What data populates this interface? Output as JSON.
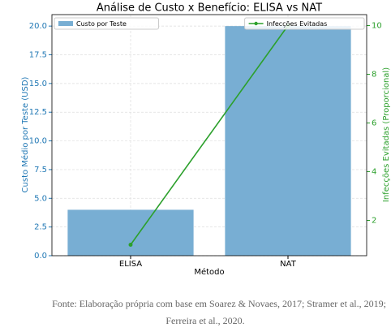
{
  "chart_data": {
    "type": "bar",
    "title": "Análise de Custo x Benefício: ELISA vs NAT",
    "xlabel": "Método",
    "ylabel": "Custo Médio por Teste (USD)",
    "y2label": "Infecções Evitadas (Proporcional)",
    "categories": [
      "ELISA",
      "NAT"
    ],
    "series": [
      {
        "name": "Custo por Teste",
        "type": "bar",
        "color": "#78aed3",
        "values": [
          4,
          20
        ]
      },
      {
        "name": "Infecções Evitadas",
        "type": "line",
        "axis": "y2",
        "color": "#2ca02c",
        "values": [
          1,
          10
        ]
      }
    ],
    "ylim": [
      0,
      21
    ],
    "yticks": [
      {
        "value": 0,
        "label": "0.0"
      },
      {
        "value": 2.5,
        "label": "2.5"
      },
      {
        "value": 5,
        "label": "5.0"
      },
      {
        "value": 7.5,
        "label": "7.5"
      },
      {
        "value": 10,
        "label": "10.0"
      },
      {
        "value": 12.5,
        "label": "12.5"
      },
      {
        "value": 15,
        "label": "15.0"
      },
      {
        "value": 17.5,
        "label": "17.5"
      },
      {
        "value": 20,
        "label": "20.0"
      }
    ],
    "y2lim": [
      0.55,
      10.45
    ],
    "y2ticks": [
      2,
      4,
      6,
      8,
      10
    ],
    "grid": true,
    "legend": "upper left",
    "legend2": "upper right"
  },
  "caption": [
    "Fonte: Elaboração própria com base em Soarez & Novaes, 2017; Stramer et al., 2019;",
    "Ferreira et al., 2020."
  ]
}
